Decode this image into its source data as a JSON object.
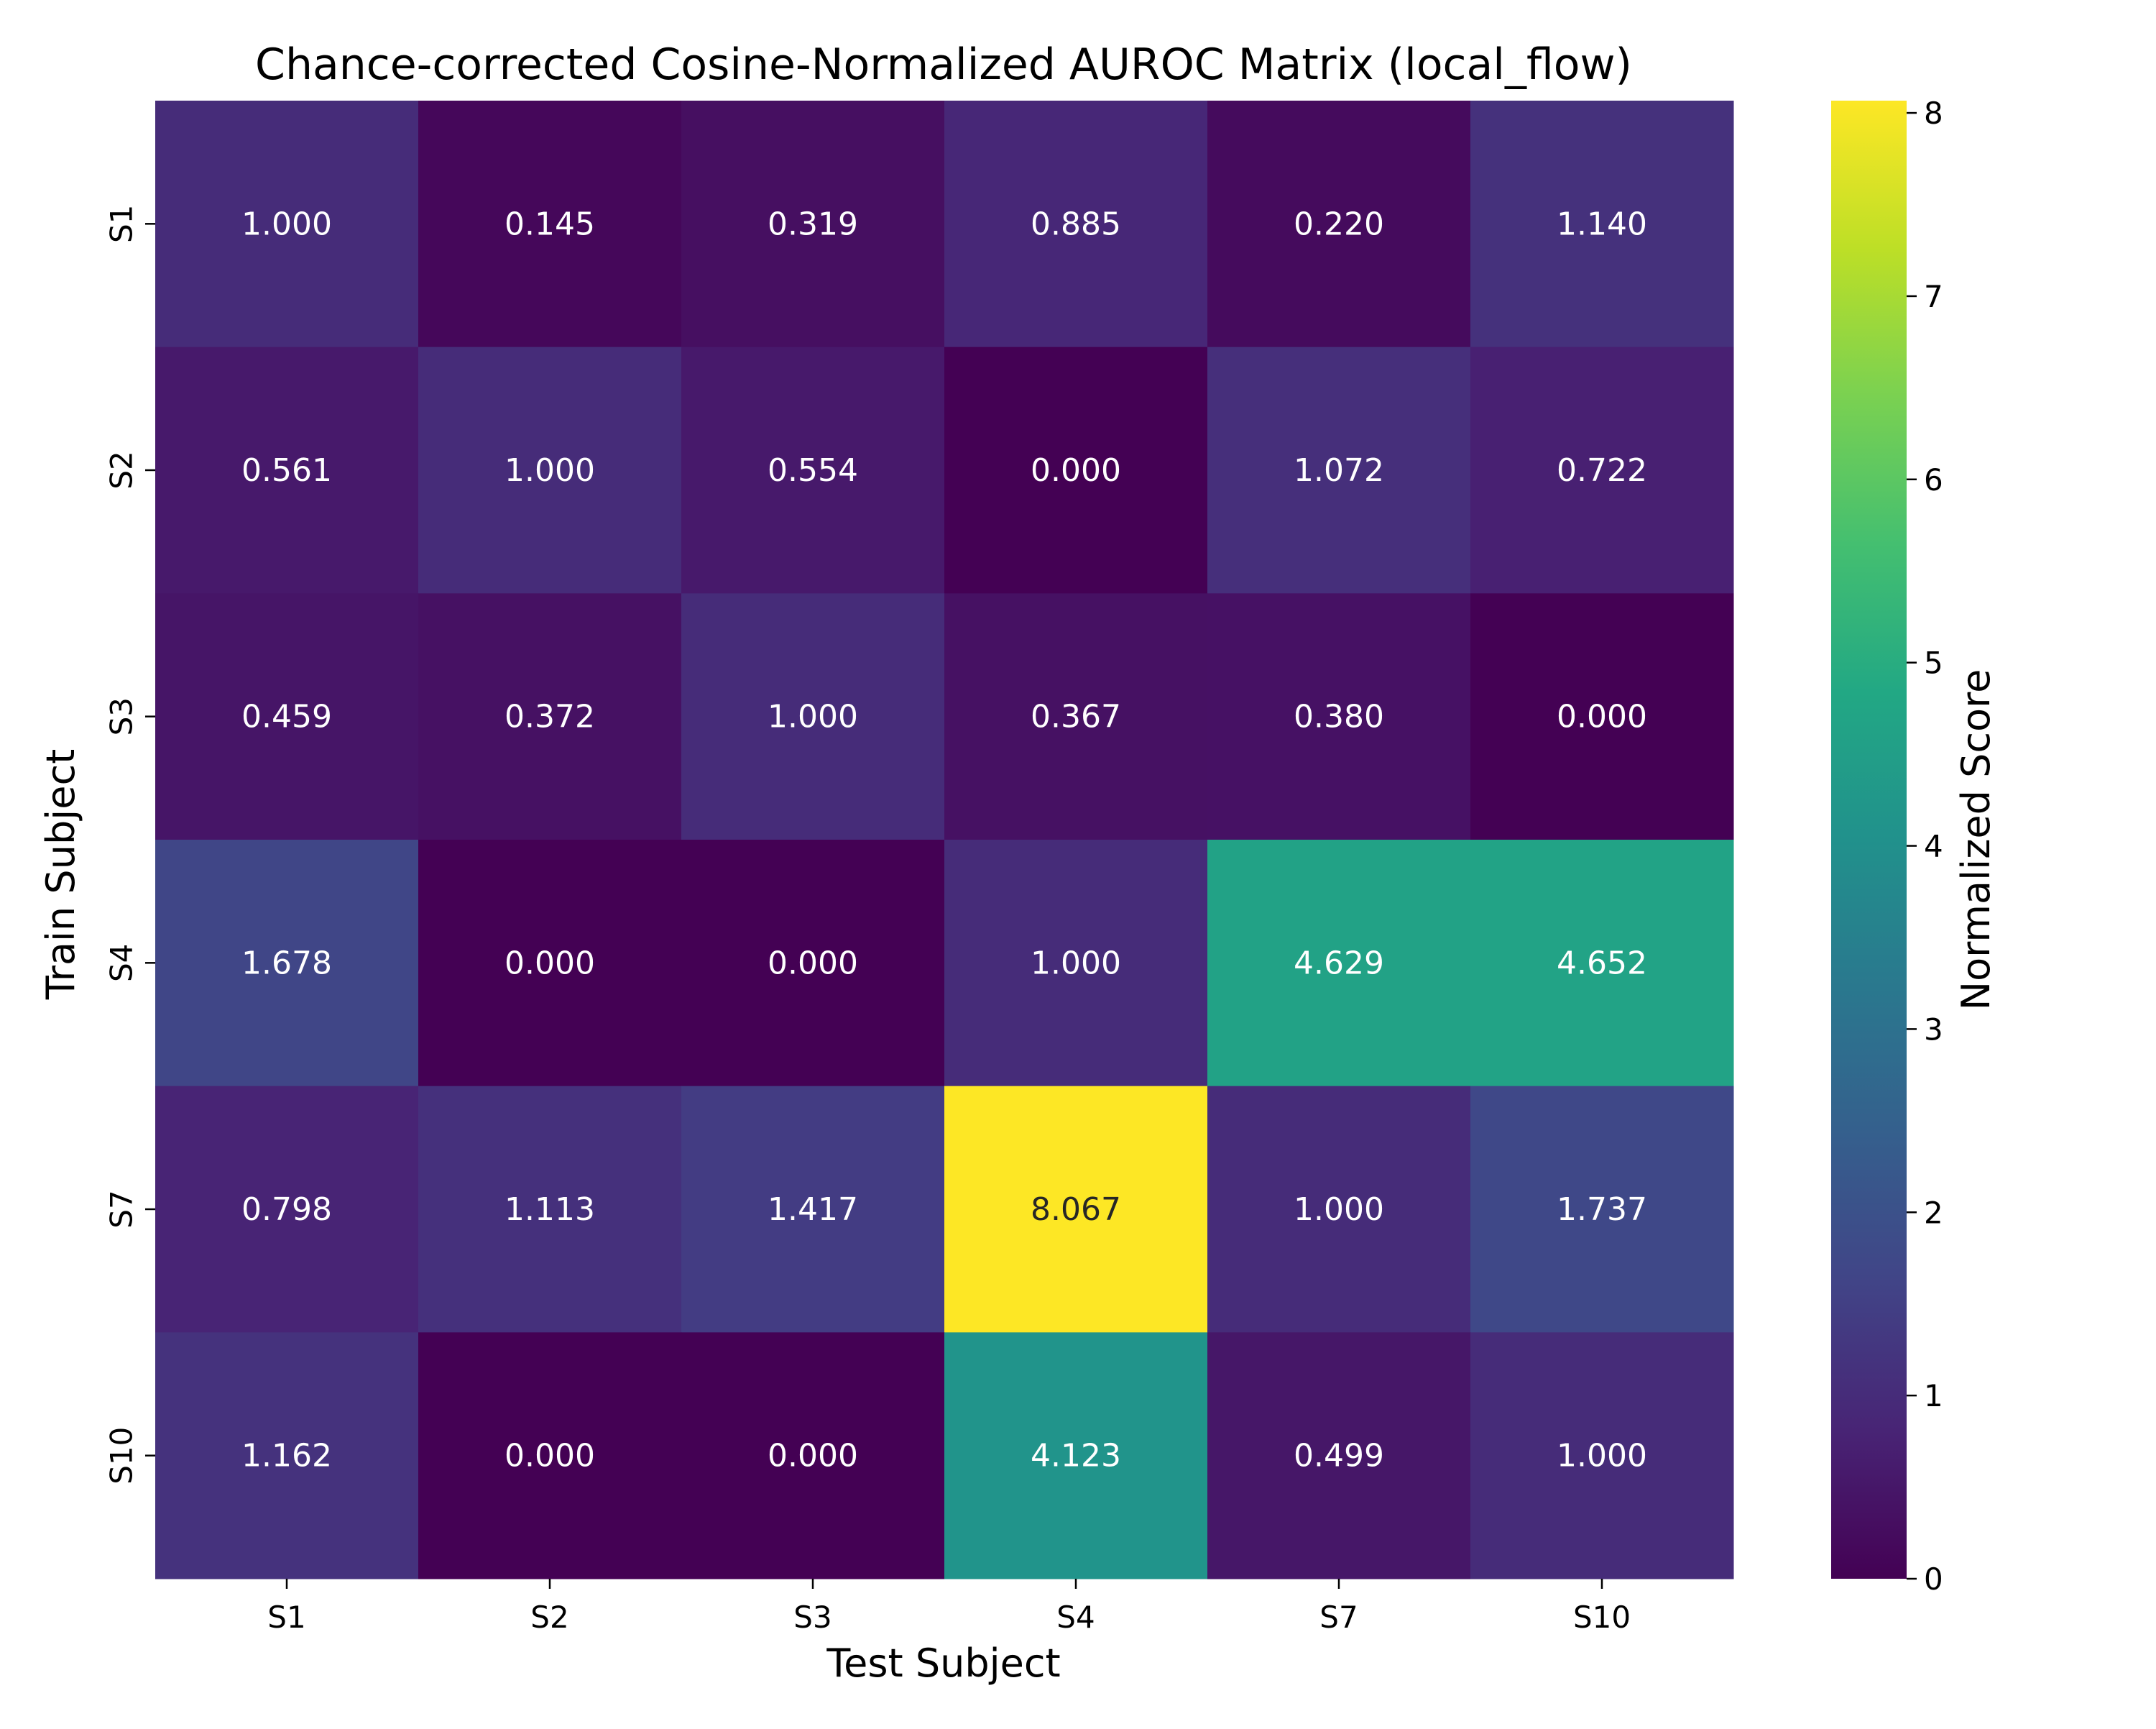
{
  "chart_data": {
    "type": "heatmap",
    "title": "Chance-corrected Cosine-Normalized AUROC Matrix (local_flow)",
    "xlabel": "Test Subject",
    "ylabel": "Train Subject",
    "x_categories": [
      "S1",
      "S2",
      "S3",
      "S4",
      "S7",
      "S10"
    ],
    "y_categories": [
      "S1",
      "S2",
      "S3",
      "S4",
      "S7",
      "S10"
    ],
    "values": [
      [
        1.0,
        0.145,
        0.319,
        0.885,
        0.22,
        1.14
      ],
      [
        0.561,
        1.0,
        0.554,
        0.0,
        1.072,
        0.722
      ],
      [
        0.459,
        0.372,
        1.0,
        0.367,
        0.38,
        0.0
      ],
      [
        1.678,
        0.0,
        0.0,
        1.0,
        4.629,
        4.652
      ],
      [
        0.798,
        1.113,
        1.417,
        8.067,
        1.0,
        1.737
      ],
      [
        1.162,
        0.0,
        0.0,
        4.123,
        0.499,
        1.0
      ]
    ],
    "value_format": "3 decimals",
    "colormap": "viridis",
    "colorbar": {
      "label": "Normalized Score",
      "range": [
        0,
        8.067
      ],
      "ticks": [
        "0",
        "1",
        "2",
        "3",
        "4",
        "5",
        "6",
        "7",
        "8"
      ]
    },
    "grid": false
  }
}
